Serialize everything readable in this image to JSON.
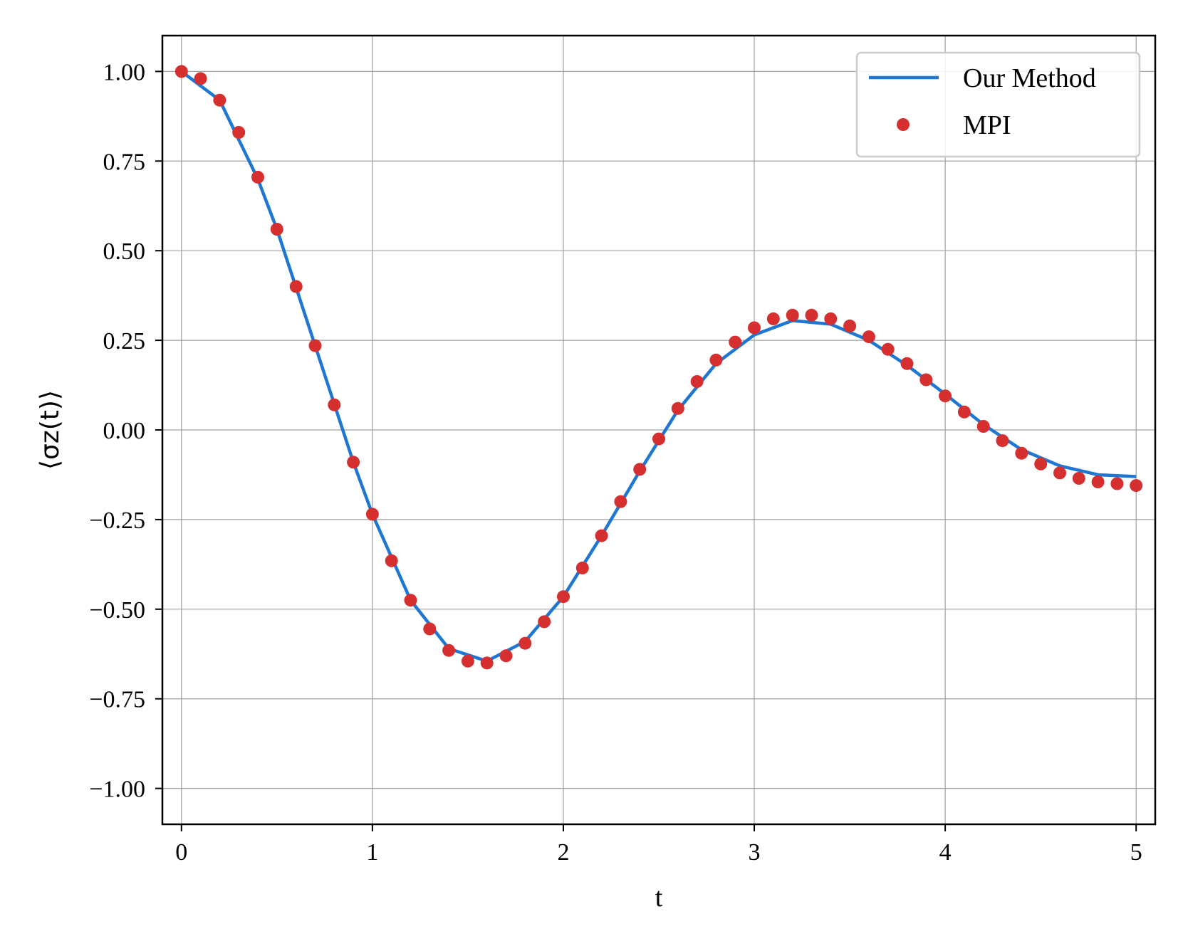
{
  "chart_data": {
    "type": "line",
    "title": "",
    "xlabel": "t",
    "ylabel": "⟨σz(t)⟩",
    "xlim": [
      -0.1,
      5.1
    ],
    "ylim": [
      -1.1,
      1.1
    ],
    "xticks": [
      0,
      1,
      2,
      3,
      4,
      5
    ],
    "xtick_labels": [
      "0",
      "1",
      "2",
      "3",
      "4",
      "5"
    ],
    "yticks": [
      1.0,
      0.75,
      0.5,
      0.25,
      0.0,
      -0.25,
      -0.5,
      -0.75,
      -1.0
    ],
    "ytick_labels": [
      "1.00",
      "0.75",
      "0.50",
      "0.25",
      "0.00",
      "−0.25",
      "−0.50",
      "−0.75",
      "−1.00"
    ],
    "grid": true,
    "legend_position": "top-right",
    "series": [
      {
        "name": "Our Method",
        "kind": "line",
        "color": "#1f77d4",
        "x": [
          0,
          0.2,
          0.4,
          0.5,
          0.7,
          0.9,
          1.0,
          1.2,
          1.4,
          1.6,
          1.8,
          2.0,
          2.2,
          2.4,
          2.6,
          2.8,
          3.0,
          3.2,
          3.4,
          3.6,
          3.8,
          4.0,
          4.2,
          4.4,
          4.6,
          4.8,
          5.0
        ],
        "y": [
          1.0,
          0.92,
          0.7,
          0.56,
          0.235,
          -0.09,
          -0.235,
          -0.475,
          -0.61,
          -0.645,
          -0.59,
          -0.465,
          -0.295,
          -0.115,
          0.055,
          0.185,
          0.265,
          0.305,
          0.295,
          0.25,
          0.18,
          0.1,
          0.015,
          -0.055,
          -0.1,
          -0.125,
          -0.13
        ]
      },
      {
        "name": "MPI",
        "kind": "scatter",
        "color": "#d62f2f",
        "x": [
          0,
          0.1,
          0.2,
          0.3,
          0.4,
          0.5,
          0.6,
          0.7,
          0.8,
          0.9,
          1.0,
          1.1,
          1.2,
          1.3,
          1.4,
          1.5,
          1.6,
          1.7,
          1.8,
          1.9,
          2.0,
          2.1,
          2.2,
          2.3,
          2.4,
          2.5,
          2.6,
          2.7,
          2.8,
          2.9,
          3.0,
          3.1,
          3.2,
          3.3,
          3.4,
          3.5,
          3.6,
          3.7,
          3.8,
          3.9,
          4.0,
          4.1,
          4.2,
          4.3,
          4.4,
          4.5,
          4.6,
          4.7,
          4.8,
          4.9,
          5.0
        ],
        "y": [
          1.0,
          0.98,
          0.92,
          0.83,
          0.705,
          0.56,
          0.4,
          0.235,
          0.07,
          -0.09,
          -0.235,
          -0.365,
          -0.475,
          -0.555,
          -0.615,
          -0.645,
          -0.65,
          -0.63,
          -0.595,
          -0.535,
          -0.465,
          -0.385,
          -0.295,
          -0.2,
          -0.11,
          -0.025,
          0.06,
          0.135,
          0.195,
          0.245,
          0.285,
          0.31,
          0.32,
          0.32,
          0.31,
          0.29,
          0.26,
          0.225,
          0.185,
          0.14,
          0.095,
          0.05,
          0.01,
          -0.03,
          -0.065,
          -0.095,
          -0.12,
          -0.135,
          -0.145,
          -0.15,
          -0.155
        ]
      }
    ]
  }
}
